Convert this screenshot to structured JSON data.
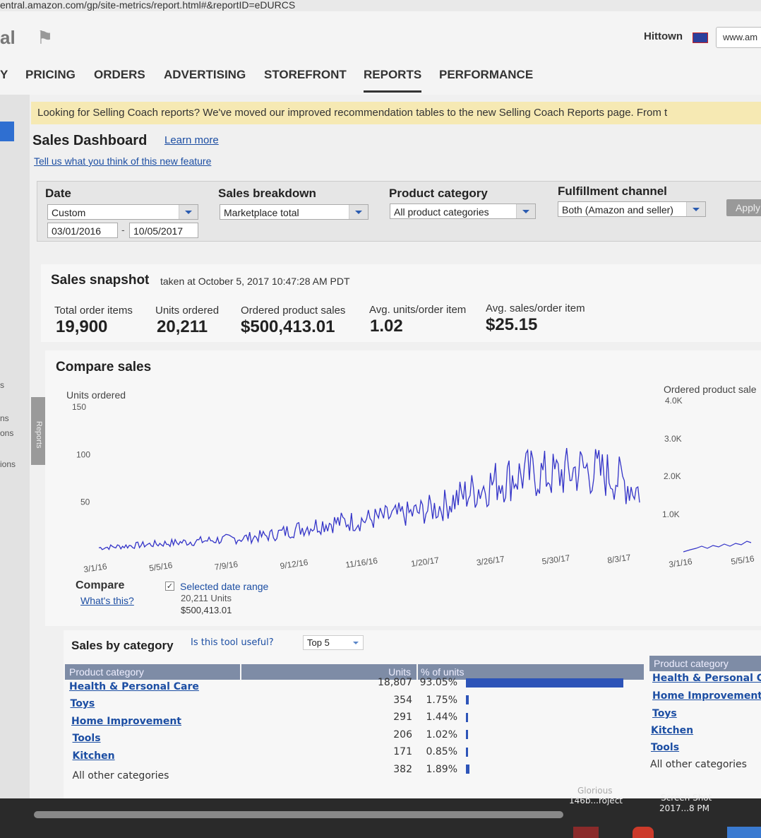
{
  "browser": {
    "url": "entral.amazon.com/gp/site-metrics/report.html#&reportID=eDURCS"
  },
  "header": {
    "store_name": "Hittown",
    "site_selector": "www.am"
  },
  "nav": {
    "items": [
      "Y",
      "PRICING",
      "ORDERS",
      "ADVERTISING",
      "STOREFRONT",
      "REPORTS",
      "PERFORMANCE"
    ],
    "active": "REPORTS"
  },
  "left_strip": {
    "labels": [
      "s",
      "ns",
      "ons",
      "ions"
    ],
    "reports_tab": "Reports"
  },
  "banner": {
    "text": "Looking for Selling Coach reports? We've moved our improved recommendation tables to the new Selling Coach Reports page. From t"
  },
  "page": {
    "title": "Sales Dashboard",
    "learn_more": "Learn more",
    "feedback_link": "Tell us what you think of this new feature"
  },
  "filters": {
    "date_label": "Date",
    "date_value": "Custom",
    "date_from": "03/01/2016",
    "date_sep": "-",
    "date_to": "10/05/2017",
    "breakdown_label": "Sales breakdown",
    "breakdown_value": "Marketplace total",
    "category_label": "Product category",
    "category_value": "All product categories",
    "channel_label": "Fulfillment channel",
    "channel_value": "Both (Amazon and seller)",
    "apply": "Apply"
  },
  "snapshot": {
    "title": "Sales snapshot",
    "taken": "taken at October 5, 2017 10:47:28 AM PDT",
    "metrics": [
      {
        "label": "Total order items",
        "value": "19,900"
      },
      {
        "label": "Units ordered",
        "value": "20,211"
      },
      {
        "label": "Ordered product sales",
        "value": "$500,413.01"
      },
      {
        "label": "Avg. units/order item",
        "value": "1.02"
      },
      {
        "label": "Avg. sales/order item",
        "value": "$25.15"
      }
    ]
  },
  "compare": {
    "title": "Compare sales",
    "compare_label": "Compare",
    "whats_this": "What's this?",
    "selected_range": "Selected date range",
    "units_line": "20,211 Units",
    "sales_line": "$500,413.01",
    "secondary_title": "Ordered product sale",
    "secondary_ticks": [
      "4.0K",
      "3.0K",
      "2.0K",
      "1.0K"
    ],
    "secondary_x": [
      "3/1/16",
      "5/5/16"
    ]
  },
  "chart_data": {
    "type": "line",
    "ylabel": "Units ordered",
    "ylim": [
      0,
      150
    ],
    "yticks": [
      "150",
      "100",
      "50"
    ],
    "xticks": [
      "3/1/16",
      "5/5/16",
      "7/9/16",
      "9/12/16",
      "11/16/16",
      "1/20/17",
      "3/26/17",
      "5/30/17",
      "8/3/17"
    ],
    "color": "#3434c8",
    "series": [
      {
        "x": [
          "2016-03-01",
          "2016-04-01",
          "2016-05-01",
          "2016-06-01",
          "2016-07-01",
          "2016-08-01",
          "2016-09-01",
          "2016-10-01",
          "2016-11-01",
          "2016-12-01",
          "2017-01-01",
          "2017-02-01",
          "2017-03-01",
          "2017-04-01",
          "2017-05-01",
          "2017-06-01",
          "2017-07-01",
          "2017-08-01",
          "2017-09-01",
          "2017-10-05"
        ],
        "values": [
          2,
          4,
          6,
          8,
          10,
          12,
          15,
          22,
          28,
          30,
          34,
          38,
          45,
          60,
          72,
          80,
          78,
          85,
          78,
          62
        ]
      }
    ]
  },
  "sales_by_category": {
    "title": "Sales by category",
    "useful": "Is this tool useful?",
    "top_select": "Top 5",
    "headers": {
      "category": "Product category",
      "units": "Units",
      "pct": "% of units"
    },
    "rows": [
      {
        "category": "Health & Personal Care",
        "units": "18,807",
        "pct": "93.05%",
        "share": 93.05
      },
      {
        "category": "Toys",
        "units": "354",
        "pct": "1.75%",
        "share": 1.75
      },
      {
        "category": "Home Improvement",
        "units": "291",
        "pct": "1.44%",
        "share": 1.44
      },
      {
        "category": "Tools",
        "units": "206",
        "pct": "1.02%",
        "share": 1.02
      },
      {
        "category": "Kitchen",
        "units": "171",
        "pct": "0.85%",
        "share": 0.85
      },
      {
        "category": "All other categories",
        "units": "382",
        "pct": "1.89%",
        "share": 1.89
      }
    ],
    "right_header": "Product category",
    "right_items": [
      "Health & Personal C",
      "Home Improvement",
      "Toys",
      "Kitchen",
      "Tools",
      "All other categories"
    ]
  },
  "desktop": {
    "icons": [
      {
        "title": "Glorious",
        "subtitle": "146b...roject"
      },
      {
        "title": "Screen Shot",
        "subtitle": "2017...8 PM"
      }
    ]
  }
}
